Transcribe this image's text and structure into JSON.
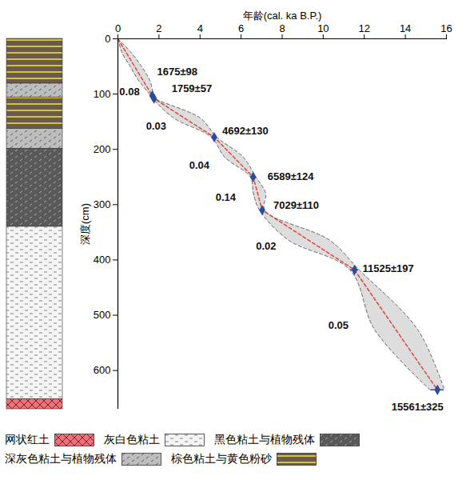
{
  "chart_data": {
    "type": "age-depth",
    "x_label": "年龄(cal. ka B.P.)",
    "y_label": "深度(cm)",
    "xlim": [
      0,
      16
    ],
    "xticks": [
      0,
      2,
      4,
      6,
      8,
      10,
      12,
      14,
      16
    ],
    "ylim": [
      0,
      670
    ],
    "yticks": [
      0,
      100,
      200,
      300,
      400,
      500,
      600
    ],
    "age_model": {
      "color": "#e0453a",
      "line_style": "dashed",
      "ages": [
        0,
        1.675,
        1.759,
        4.692,
        6.589,
        7.029,
        11.525,
        15.561
      ],
      "depths": [
        0,
        103,
        108,
        178,
        250,
        310,
        418,
        635
      ]
    },
    "dates": {
      "color": "#2b4c9b",
      "marker": "diamond",
      "labels": [
        "1675±98",
        "1759±57",
        "4692±130",
        "6589±124",
        "7029±110",
        "11525±197",
        "15561±325"
      ],
      "ages": [
        1.675,
        1.759,
        4.692,
        6.589,
        7.029,
        11.525,
        15.561
      ],
      "errors": [
        0.098,
        0.057,
        0.13,
        0.124,
        0.11,
        0.197,
        0.325
      ],
      "depths": [
        103,
        108,
        178,
        250,
        310,
        418,
        635
      ]
    },
    "sedimentation_rates": {
      "values": [
        0.08,
        null,
        0.03,
        0.04,
        0.14,
        0.02,
        0.05
      ]
    },
    "envelope": {
      "color": "#cfcfcf",
      "line_style": "dashed",
      "depths": [
        0,
        25,
        50,
        75,
        103,
        108,
        143,
        178,
        214,
        250,
        280,
        310,
        364,
        418,
        526,
        635
      ],
      "min": [
        0,
        0.2,
        0.6,
        1.0,
        1.6,
        1.7,
        2.7,
        4.55,
        5.2,
        6.45,
        6.6,
        6.9,
        8.3,
        11.3,
        12.5,
        15.2
      ],
      "max": [
        0,
        0.65,
        1.15,
        1.55,
        1.76,
        1.83,
        4.0,
        4.82,
        6.1,
        6.72,
        7.2,
        7.15,
        10.3,
        11.75,
        14.6,
        15.9
      ]
    },
    "lithology": [
      {
        "name": "网状红土",
        "color": "#e8737a"
      },
      {
        "name": "灰白色粘土",
        "color": "#f4f4f4"
      },
      {
        "name": "黑色粘土与植物残体",
        "color": "#595959"
      },
      {
        "name": "深灰色粘土与植物残体",
        "color": "#bdbdbd"
      },
      {
        "name": "棕色粘土与黄色粉砂",
        "color": "#6b5b4c"
      }
    ],
    "layers": [
      {
        "lithology": "棕色粘土与黄色粉砂",
        "top": 0,
        "bottom": 81
      },
      {
        "lithology": "深灰色粘土与植物残体",
        "top": 81,
        "bottom": 106
      },
      {
        "lithology": "棕色粘土与黄色粉砂",
        "top": 106,
        "bottom": 163
      },
      {
        "lithology": "深灰色粘土与植物残体",
        "top": 163,
        "bottom": 199
      },
      {
        "lithology": "黑色粘土与植物残体",
        "top": 199,
        "bottom": 340
      },
      {
        "lithology": "灰白色粘土",
        "top": 340,
        "bottom": 652
      },
      {
        "lithology": "网状红土",
        "top": 652,
        "bottom": 670
      }
    ],
    "legend": "bottom"
  }
}
